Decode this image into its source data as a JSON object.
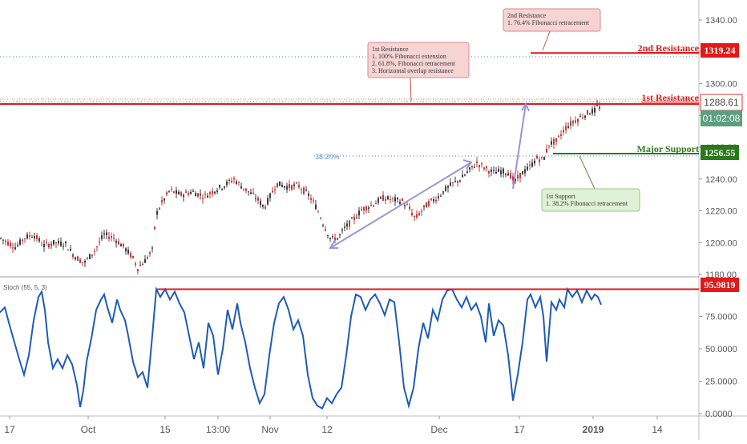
{
  "chart_data": [
    {
      "panel": "price",
      "type": "candlestick",
      "ylim": [
        1180,
        1350
      ],
      "y_ticks": [
        "1340.00",
        "1320.00",
        "1300.00",
        "1280.00",
        "1260.00",
        "1240.00",
        "1220.00",
        "1200.00",
        "1180.00"
      ],
      "y_tick_values": [
        1340,
        1320,
        1300,
        1280,
        1260,
        1240,
        1220,
        1200,
        1180
      ],
      "price_path": [
        [
          0,
          1203
        ],
        [
          10,
          1200
        ],
        [
          20,
          1197
        ],
        [
          30,
          1203
        ],
        [
          42,
          1205
        ],
        [
          55,
          1198
        ],
        [
          68,
          1200
        ],
        [
          82,
          1199
        ],
        [
          92,
          1192
        ],
        [
          105,
          1187
        ],
        [
          118,
          1195
        ],
        [
          130,
          1205
        ],
        [
          142,
          1203
        ],
        [
          155,
          1197
        ],
        [
          165,
          1191
        ],
        [
          172,
          1184
        ],
        [
          180,
          1188
        ],
        [
          190,
          1195
        ],
        [
          195,
          1218
        ],
        [
          202,
          1225
        ],
        [
          212,
          1233
        ],
        [
          225,
          1230
        ],
        [
          240,
          1232
        ],
        [
          255,
          1229
        ],
        [
          268,
          1233
        ],
        [
          280,
          1236
        ],
        [
          292,
          1240
        ],
        [
          300,
          1236
        ],
        [
          310,
          1232
        ],
        [
          320,
          1228
        ],
        [
          330,
          1222
        ],
        [
          338,
          1230
        ],
        [
          345,
          1237
        ],
        [
          360,
          1235
        ],
        [
          372,
          1236
        ],
        [
          385,
          1230
        ],
        [
          395,
          1222
        ],
        [
          405,
          1210
        ],
        [
          413,
          1202
        ],
        [
          422,
          1203
        ],
        [
          430,
          1209
        ],
        [
          440,
          1214
        ],
        [
          452,
          1221
        ],
        [
          465,
          1224
        ],
        [
          478,
          1228
        ],
        [
          490,
          1227
        ],
        [
          502,
          1226
        ],
        [
          510,
          1222
        ],
        [
          518,
          1215
        ],
        [
          526,
          1220
        ],
        [
          535,
          1225
        ],
        [
          545,
          1228
        ],
        [
          555,
          1233
        ],
        [
          565,
          1237
        ],
        [
          575,
          1240
        ],
        [
          585,
          1245
        ],
        [
          595,
          1250
        ],
        [
          605,
          1247
        ],
        [
          615,
          1244
        ],
        [
          625,
          1245
        ],
        [
          635,
          1244
        ],
        [
          642,
          1238
        ],
        [
          650,
          1243
        ],
        [
          660,
          1247
        ],
        [
          670,
          1253
        ],
        [
          678,
          1252
        ],
        [
          685,
          1262
        ],
        [
          695,
          1264
        ],
        [
          705,
          1272
        ],
        [
          715,
          1276
        ],
        [
          725,
          1279
        ],
        [
          735,
          1282
        ],
        [
          742,
          1283
        ],
        [
          747,
          1287
        ],
        [
          750,
          1281
        ]
      ],
      "levels": [
        {
          "label": "2nd Resistance",
          "value": "1319.24",
          "color": "#e01a1a"
        },
        {
          "label": "1st Resistance",
          "value": "1288.61",
          "color": "#e01a1a"
        },
        {
          "label": "Major Support",
          "value": "1256.55",
          "color": "#2a7a1a"
        }
      ],
      "countdown": "01:02:08",
      "fib_level_label": "38.20%",
      "annotations": [
        {
          "id": "second-resistance",
          "lines": [
            "2nd Resistance",
            "1. 76.4% Fibonacci retracement"
          ]
        },
        {
          "id": "first-resistance",
          "lines": [
            "1st Resistance",
            "1. 100% Fibonacci extension",
            "2. 61.8%, Fibonacci retracement",
            "3. Horizontal overlap resistance"
          ]
        },
        {
          "id": "first-support",
          "lines": [
            "1st Support",
            "1. 38.2% Fibonacci retracement"
          ]
        }
      ]
    },
    {
      "panel": "oscillator",
      "type": "line",
      "title": "Stoch (55, 5, 3)",
      "ylim": [
        0,
        100
      ],
      "y_ticks": [
        "75.0000",
        "50.0000",
        "25.0000",
        "0.0000"
      ],
      "y_tick_values": [
        75,
        50,
        25,
        0
      ],
      "resistance_value": "95.9819",
      "resistance_level": 95.98,
      "series": [
        {
          "color": "#1f5bb8",
          "points": [
            [
              0,
              78
            ],
            [
              6,
              82
            ],
            [
              12,
              68
            ],
            [
              18,
              55
            ],
            [
              24,
              42
            ],
            [
              30,
              30
            ],
            [
              36,
              45
            ],
            [
              42,
              72
            ],
            [
              48,
              90
            ],
            [
              52,
              94
            ],
            [
              56,
              80
            ],
            [
              60,
              55
            ],
            [
              66,
              35
            ],
            [
              72,
              42
            ],
            [
              78,
              35
            ],
            [
              84,
              45
            ],
            [
              90,
              38
            ],
            [
              96,
              22
            ],
            [
              100,
              5
            ],
            [
              104,
              18
            ],
            [
              108,
              40
            ],
            [
              114,
              58
            ],
            [
              120,
              80
            ],
            [
              126,
              88
            ],
            [
              130,
              92
            ],
            [
              134,
              82
            ],
            [
              140,
              70
            ],
            [
              146,
              88
            ],
            [
              150,
              80
            ],
            [
              156,
              72
            ],
            [
              160,
              60
            ],
            [
              166,
              40
            ],
            [
              172,
              28
            ],
            [
              178,
              32
            ],
            [
              184,
              20
            ],
            [
              190,
              60
            ],
            [
              195,
              96
            ],
            [
              200,
              90
            ],
            [
              206,
              96
            ],
            [
              212,
              88
            ],
            [
              218,
              94
            ],
            [
              224,
              85
            ],
            [
              230,
              78
            ],
            [
              236,
              60
            ],
            [
              242,
              42
            ],
            [
              248,
              55
            ],
            [
              254,
              35
            ],
            [
              260,
              70
            ],
            [
              266,
              60
            ],
            [
              272,
              30
            ],
            [
              278,
              50
            ],
            [
              284,
              80
            ],
            [
              290,
              65
            ],
            [
              296,
              85
            ],
            [
              300,
              70
            ],
            [
              306,
              55
            ],
            [
              312,
              35
            ],
            [
              318,
              20
            ],
            [
              324,
              8
            ],
            [
              330,
              15
            ],
            [
              336,
              45
            ],
            [
              342,
              70
            ],
            [
              348,
              85
            ],
            [
              354,
              90
            ],
            [
              360,
              80
            ],
            [
              366,
              65
            ],
            [
              372,
              72
            ],
            [
              378,
              60
            ],
            [
              384,
              30
            ],
            [
              390,
              12
            ],
            [
              396,
              6
            ],
            [
              402,
              4
            ],
            [
              408,
              12
            ],
            [
              414,
              8
            ],
            [
              420,
              15
            ],
            [
              426,
              20
            ],
            [
              432,
              45
            ],
            [
              438,
              75
            ],
            [
              444,
              92
            ],
            [
              450,
              90
            ],
            [
              456,
              80
            ],
            [
              462,
              88
            ],
            [
              468,
              92
            ],
            [
              474,
              85
            ],
            [
              480,
              76
            ],
            [
              486,
              88
            ],
            [
              492,
              86
            ],
            [
              498,
              55
            ],
            [
              504,
              20
            ],
            [
              510,
              6
            ],
            [
              516,
              20
            ],
            [
              522,
              50
            ],
            [
              528,
              70
            ],
            [
              534,
              58
            ],
            [
              540,
              80
            ],
            [
              546,
              72
            ],
            [
              552,
              88
            ],
            [
              558,
              95
            ],
            [
              564,
              96
            ],
            [
              570,
              88
            ],
            [
              576,
              82
            ],
            [
              582,
              90
            ],
            [
              588,
              80
            ],
            [
              594,
              85
            ],
            [
              600,
              75
            ],
            [
              606,
              55
            ],
            [
              610,
              85
            ],
            [
              616,
              60
            ],
            [
              622,
              72
            ],
            [
              628,
              68
            ],
            [
              634,
              45
            ],
            [
              640,
              10
            ],
            [
              646,
              30
            ],
            [
              652,
              55
            ],
            [
              658,
              88
            ],
            [
              662,
              92
            ],
            [
              668,
              82
            ],
            [
              674,
              90
            ],
            [
              678,
              75
            ],
            [
              682,
              40
            ],
            [
              688,
              86
            ],
            [
              694,
              80
            ],
            [
              698,
              88
            ],
            [
              704,
              82
            ],
            [
              708,
              96
            ],
            [
              714,
              90
            ],
            [
              720,
              95
            ],
            [
              726,
              86
            ],
            [
              732,
              95
            ],
            [
              738,
              88
            ],
            [
              742,
              92
            ],
            [
              746,
              90
            ],
            [
              750,
              84
            ]
          ]
        }
      ],
      "x_ticks": [
        "17",
        "Oct",
        "15",
        "13:00",
        "Nov",
        "12",
        "Dec",
        "17",
        "2019",
        "14"
      ],
      "x_tick_positions": [
        12,
        110,
        206,
        272,
        337,
        408,
        548,
        648,
        740,
        820
      ]
    }
  ]
}
